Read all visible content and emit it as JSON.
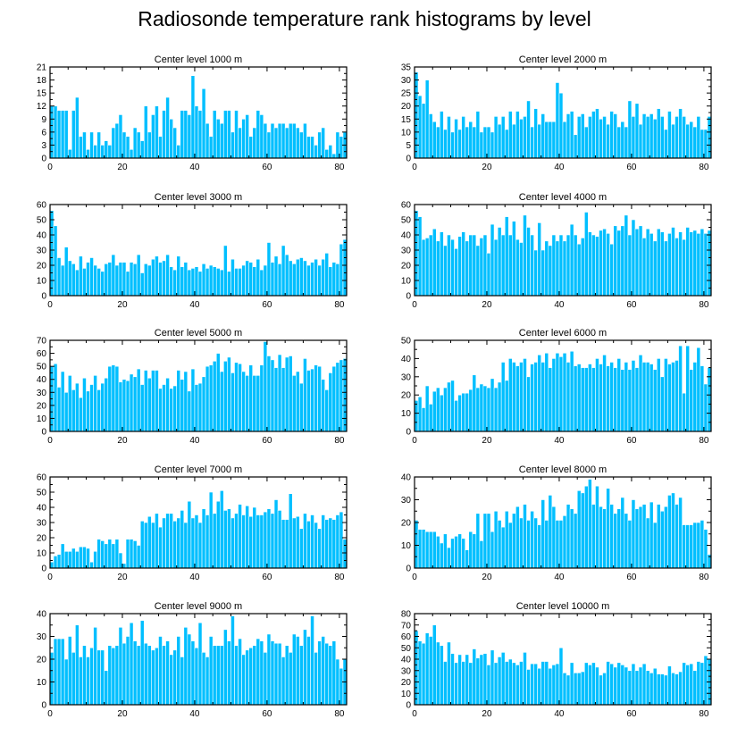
{
  "figure": {
    "title": "Radiosonde temperature rank histograms by level"
  },
  "colors": {
    "bar": "#00bfff",
    "axis": "#000000",
    "background": "#ffffff"
  },
  "chart_data": [
    {
      "type": "bar",
      "title": "Center level 1000 m",
      "xlim": [
        0,
        82
      ],
      "ylim": [
        0,
        21
      ],
      "xticks": [
        0,
        20,
        40,
        60,
        80
      ],
      "yticks": [
        0,
        3,
        6,
        9,
        12,
        15,
        18,
        21
      ],
      "values": [
        12,
        12,
        11,
        11,
        11,
        2,
        11,
        14,
        5,
        6,
        2,
        6,
        3,
        6,
        3,
        4,
        3,
        7,
        8,
        10,
        6,
        5,
        2,
        7,
        6,
        4,
        12,
        6,
        10,
        12,
        5,
        11,
        14,
        9,
        7,
        3,
        11,
        11,
        10,
        19,
        12,
        11,
        16,
        8,
        5,
        11,
        9,
        8,
        11,
        11,
        6,
        11,
        7,
        9,
        10,
        5,
        7,
        11,
        10,
        8,
        6,
        8,
        7,
        8,
        8,
        7,
        8,
        8,
        7,
        6,
        8,
        5,
        5,
        3,
        6,
        7,
        2,
        3,
        1,
        6,
        5,
        6
      ]
    },
    {
      "type": "bar",
      "title": "Center level 2000 m",
      "xlim": [
        0,
        82
      ],
      "ylim": [
        0,
        35
      ],
      "xticks": [
        0,
        20,
        40,
        60,
        80
      ],
      "yticks": [
        0,
        5,
        10,
        15,
        20,
        25,
        30,
        35
      ],
      "values": [
        33,
        24,
        21,
        30,
        17,
        14,
        12,
        18,
        11,
        16,
        10,
        15,
        11,
        16,
        12,
        14,
        12,
        18,
        10,
        12,
        12,
        10,
        16,
        13,
        16,
        11,
        18,
        13,
        18,
        15,
        16,
        22,
        12,
        19,
        13,
        17,
        14,
        14,
        14,
        29,
        25,
        14,
        17,
        18,
        9,
        16,
        17,
        12,
        16,
        18,
        19,
        15,
        16,
        13,
        18,
        17,
        12,
        14,
        12,
        22,
        16,
        21,
        13,
        17,
        16,
        17,
        15,
        19,
        16,
        11,
        18,
        13,
        16,
        19,
        16,
        13,
        14,
        12,
        16,
        11,
        11,
        16
      ]
    },
    {
      "type": "bar",
      "title": "Center level 3000 m",
      "xlim": [
        0,
        82
      ],
      "ylim": [
        0,
        60
      ],
      "xticks": [
        0,
        20,
        40,
        60,
        80
      ],
      "yticks": [
        0,
        10,
        20,
        30,
        40,
        50,
        60
      ],
      "values": [
        56,
        46,
        25,
        20,
        32,
        23,
        21,
        17,
        26,
        18,
        22,
        25,
        20,
        18,
        16,
        21,
        22,
        27,
        20,
        22,
        22,
        16,
        22,
        21,
        27,
        15,
        21,
        20,
        24,
        26,
        22,
        23,
        27,
        19,
        17,
        26,
        19,
        22,
        17,
        18,
        19,
        16,
        21,
        18,
        20,
        19,
        18,
        17,
        33,
        16,
        24,
        18,
        18,
        20,
        23,
        22,
        19,
        24,
        17,
        20,
        35,
        22,
        26,
        21,
        33,
        27,
        23,
        21,
        24,
        25,
        23,
        20,
        22,
        24,
        20,
        24,
        28,
        19,
        22,
        21,
        34,
        37
      ]
    },
    {
      "type": "bar",
      "title": "Center level 4000 m",
      "xlim": [
        0,
        82
      ],
      "ylim": [
        0,
        60
      ],
      "xticks": [
        0,
        20,
        40,
        60,
        80
      ],
      "yticks": [
        0,
        10,
        20,
        30,
        40,
        50,
        60
      ],
      "values": [
        56,
        52,
        37,
        38,
        40,
        44,
        36,
        42,
        33,
        40,
        37,
        31,
        39,
        42,
        36,
        40,
        40,
        33,
        38,
        40,
        28,
        47,
        37,
        45,
        40,
        52,
        40,
        49,
        37,
        35,
        53,
        45,
        40,
        30,
        48,
        30,
        36,
        33,
        40,
        36,
        40,
        36,
        40,
        47,
        40,
        34,
        38,
        55,
        42,
        40,
        39,
        43,
        44,
        41,
        34,
        46,
        43,
        46,
        53,
        40,
        50,
        44,
        46,
        38,
        44,
        41,
        36,
        44,
        42,
        36,
        41,
        45,
        38,
        42,
        37,
        45,
        42,
        43,
        41,
        44,
        41,
        43
      ]
    },
    {
      "type": "bar",
      "title": "Center level 5000 m",
      "xlim": [
        0,
        82
      ],
      "ylim": [
        0,
        70
      ],
      "xticks": [
        0,
        20,
        40,
        60,
        80
      ],
      "yticks": [
        0,
        10,
        20,
        30,
        40,
        50,
        60,
        70
      ],
      "values": [
        50,
        52,
        34,
        46,
        30,
        43,
        32,
        37,
        26,
        41,
        31,
        36,
        43,
        32,
        37,
        41,
        50,
        51,
        50,
        38,
        40,
        39,
        44,
        42,
        48,
        36,
        47,
        41,
        47,
        47,
        33,
        36,
        41,
        33,
        35,
        47,
        40,
        46,
        31,
        48,
        36,
        37,
        42,
        50,
        51,
        54,
        60,
        46,
        54,
        57,
        45,
        53,
        52,
        46,
        43,
        51,
        43,
        43,
        51,
        69,
        58,
        55,
        49,
        59,
        49,
        57,
        58,
        43,
        46,
        37,
        56,
        47,
        48,
        51,
        50,
        40,
        32,
        45,
        50,
        53,
        55,
        56
      ]
    },
    {
      "type": "bar",
      "title": "Center level 6000 m",
      "xlim": [
        0,
        82
      ],
      "ylim": [
        0,
        50
      ],
      "xticks": [
        0,
        20,
        40,
        60,
        80
      ],
      "yticks": [
        0,
        10,
        20,
        30,
        40,
        50
      ],
      "values": [
        17,
        19,
        13,
        25,
        15,
        22,
        24,
        20,
        24,
        27,
        28,
        17,
        20,
        21,
        21,
        23,
        31,
        24,
        26,
        25,
        24,
        29,
        24,
        27,
        38,
        28,
        40,
        38,
        36,
        38,
        40,
        30,
        37,
        38,
        42,
        38,
        43,
        35,
        40,
        43,
        41,
        43,
        38,
        44,
        36,
        37,
        35,
        35,
        37,
        35,
        40,
        37,
        42,
        36,
        38,
        35,
        40,
        34,
        38,
        34,
        39,
        35,
        42,
        38,
        38,
        37,
        34,
        40,
        30,
        40,
        37,
        38,
        39,
        47,
        21,
        47,
        34,
        38,
        46,
        36,
        26,
        35
      ]
    },
    {
      "type": "bar",
      "title": "Center level 7000 m",
      "xlim": [
        0,
        82
      ],
      "ylim": [
        0,
        60
      ],
      "xticks": [
        0,
        20,
        40,
        60,
        80
      ],
      "yticks": [
        0,
        10,
        20,
        30,
        40,
        50,
        60
      ],
      "values": [
        4,
        8,
        9,
        16,
        11,
        11,
        13,
        11,
        14,
        14,
        13,
        4,
        11,
        19,
        18,
        16,
        19,
        16,
        19,
        10,
        3,
        19,
        19,
        18,
        15,
        31,
        30,
        34,
        30,
        36,
        27,
        33,
        36,
        36,
        31,
        33,
        38,
        30,
        44,
        33,
        35,
        30,
        39,
        35,
        50,
        36,
        44,
        51,
        38,
        39,
        33,
        36,
        42,
        35,
        41,
        34,
        40,
        35,
        35,
        37,
        39,
        36,
        45,
        38,
        32,
        32,
        49,
        33,
        34,
        26,
        36,
        31,
        35,
        30,
        26,
        35,
        32,
        33,
        32,
        35,
        37,
        19
      ]
    },
    {
      "type": "bar",
      "title": "Center level 8000 m",
      "xlim": [
        0,
        82
      ],
      "ylim": [
        0,
        40
      ],
      "xticks": [
        0,
        20,
        40,
        60,
        80
      ],
      "yticks": [
        0,
        10,
        20,
        30,
        40
      ],
      "values": [
        21,
        17,
        17,
        16,
        16,
        16,
        14,
        11,
        15,
        9,
        13,
        14,
        15,
        13,
        8,
        16,
        15,
        24,
        12,
        24,
        24,
        16,
        25,
        21,
        18,
        25,
        20,
        24,
        27,
        22,
        28,
        21,
        25,
        22,
        19,
        30,
        21,
        32,
        27,
        21,
        21,
        23,
        28,
        26,
        24,
        34,
        33,
        36,
        39,
        28,
        36,
        27,
        26,
        35,
        28,
        24,
        26,
        31,
        24,
        21,
        30,
        26,
        27,
        28,
        22,
        29,
        20,
        28,
        25,
        27,
        32,
        33,
        28,
        31,
        19,
        19,
        19,
        20,
        20,
        21,
        17,
        6
      ]
    },
    {
      "type": "bar",
      "title": "Center level 9000 m",
      "xlim": [
        0,
        82
      ],
      "ylim": [
        0,
        40
      ],
      "xticks": [
        0,
        20,
        40,
        60,
        80
      ],
      "yticks": [
        0,
        10,
        20,
        30,
        40
      ],
      "values": [
        23,
        29,
        29,
        29,
        20,
        30,
        23,
        35,
        21,
        26,
        21,
        25,
        34,
        24,
        24,
        15,
        26,
        25,
        26,
        34,
        27,
        30,
        36,
        28,
        26,
        37,
        27,
        26,
        24,
        25,
        30,
        26,
        28,
        22,
        24,
        30,
        21,
        34,
        31,
        28,
        25,
        36,
        23,
        21,
        30,
        26,
        26,
        26,
        33,
        28,
        39,
        26,
        29,
        22,
        24,
        25,
        26,
        29,
        28,
        23,
        31,
        28,
        27,
        27,
        21,
        26,
        23,
        31,
        30,
        26,
        33,
        30,
        39,
        23,
        28,
        30,
        27,
        26,
        28,
        20,
        16,
        20
      ]
    },
    {
      "type": "bar",
      "title": "Center level 10000 m",
      "xlim": [
        0,
        82
      ],
      "ylim": [
        0,
        80
      ],
      "xticks": [
        0,
        20,
        40,
        60,
        80
      ],
      "yticks": [
        0,
        10,
        20,
        30,
        40,
        50,
        60,
        70,
        80
      ],
      "values": [
        65,
        56,
        54,
        63,
        60,
        70,
        55,
        52,
        38,
        55,
        45,
        37,
        44,
        38,
        44,
        37,
        49,
        41,
        44,
        45,
        35,
        48,
        37,
        42,
        46,
        38,
        40,
        37,
        35,
        38,
        46,
        31,
        36,
        36,
        32,
        38,
        38,
        32,
        35,
        36,
        50,
        28,
        26,
        37,
        28,
        28,
        29,
        37,
        35,
        37,
        33,
        26,
        28,
        38,
        36,
        33,
        37,
        35,
        33,
        30,
        36,
        30,
        33,
        36,
        30,
        28,
        32,
        27,
        27,
        26,
        34,
        28,
        27,
        29,
        37,
        35,
        36,
        30,
        38,
        37,
        43,
        40
      ]
    }
  ]
}
